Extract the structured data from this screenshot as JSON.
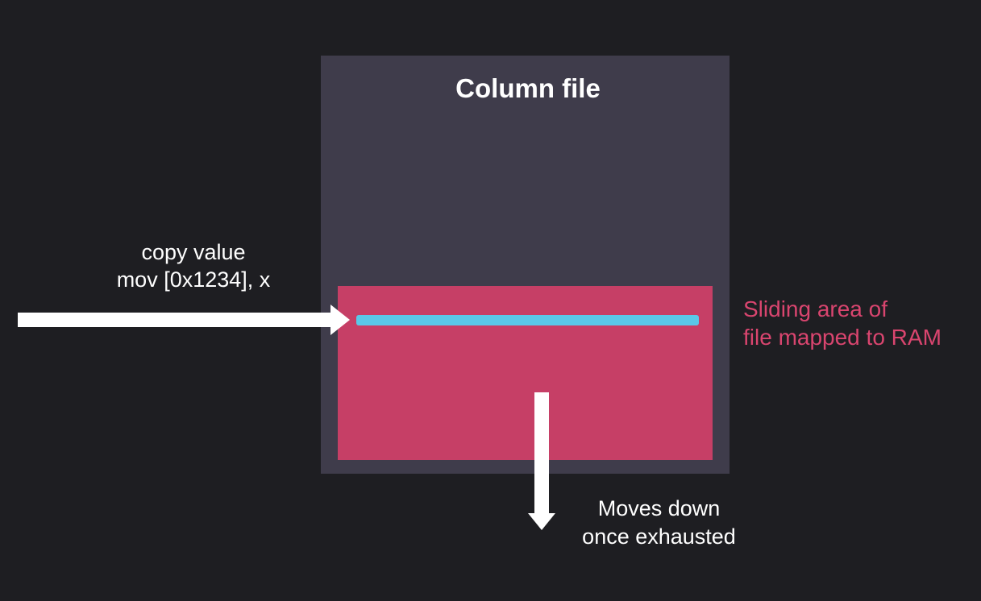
{
  "diagram": {
    "column_title": "Column file",
    "copy_instruction": {
      "line1": "copy value",
      "line2": "mov [0x1234], x"
    },
    "sliding_label": {
      "line1": "Sliding area of",
      "line2": "file mapped to RAM"
    },
    "moves_label": {
      "line1": "Moves down",
      "line2": "once exhausted"
    }
  },
  "colors": {
    "background": "#1e1e22",
    "column_file": "#3f3c4b",
    "mapped_area": "#c63f66",
    "value_line": "#5ac8e8",
    "sliding_label_text": "#d9456f",
    "arrows": "#ffffff"
  }
}
